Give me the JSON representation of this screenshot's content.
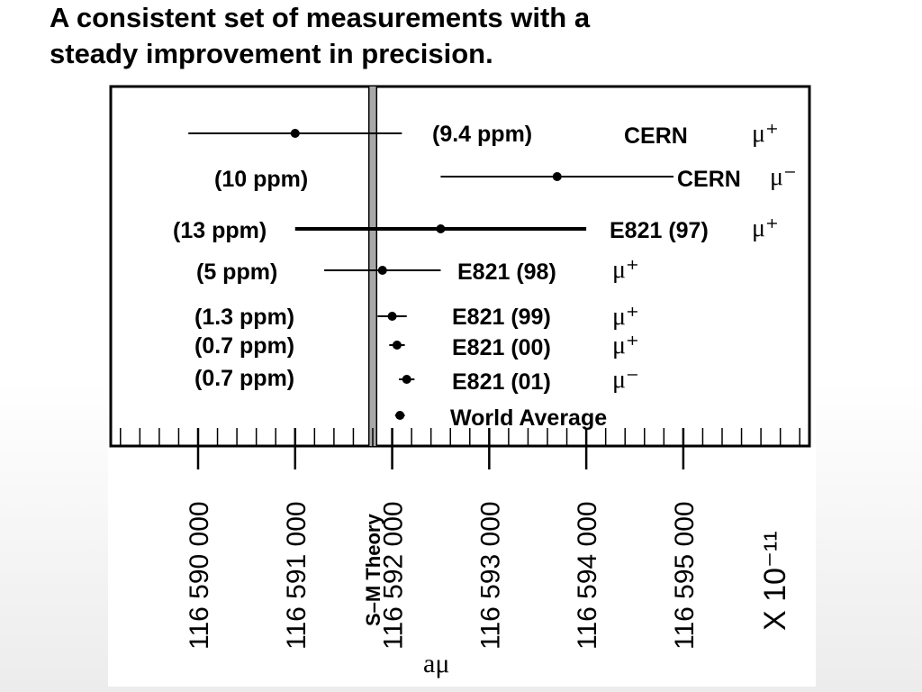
{
  "slide": {
    "title_line1": "A consistent set of measurements with a",
    "title_line2": "steady improvement in precision."
  },
  "chart_data": {
    "type": "scatter",
    "orientation": "horizontal",
    "xlabel": "aμ",
    "x_multiplier": "X 10⁻¹¹",
    "xlim": [
      116589100,
      116596300
    ],
    "x_ticks": [
      116590000,
      116591000,
      116592000,
      116593000,
      116594000,
      116595000
    ],
    "x_tick_labels": [
      "116 590 000",
      "116 591 000",
      "116 592 000",
      "116 593 000",
      "116 594 000",
      "116 595 000"
    ],
    "minor_tick_step": 200,
    "theory": {
      "label": "S–M Theory",
      "value": 116591800,
      "band": [
        116591760,
        116591840
      ]
    },
    "measurements": [
      {
        "experiment": "CERN",
        "charge": "μ⁺",
        "precision": "(9.4 ppm)",
        "value": 116591000,
        "err_lo": 116589900,
        "err_hi": 116592100
      },
      {
        "experiment": "CERN",
        "charge": "μ⁻",
        "precision": "(10 ppm)",
        "value": 116593700,
        "err_lo": 116592500,
        "err_hi": 116594900
      },
      {
        "experiment": "E821 (97)",
        "charge": "μ⁺",
        "precision": "(13 ppm)",
        "value": 116592500,
        "err_lo": 116591000,
        "err_hi": 116594000
      },
      {
        "experiment": "E821 (98)",
        "charge": "μ⁺",
        "precision": "(5 ppm)",
        "value": 116591900,
        "err_lo": 116591300,
        "err_hi": 116592500
      },
      {
        "experiment": "E821 (99)",
        "charge": "μ⁺",
        "precision": "(1.3 ppm)",
        "value": 116592000,
        "err_lo": 116591850,
        "err_hi": 116592150
      },
      {
        "experiment": "E821 (00)",
        "charge": "μ⁺",
        "precision": "(0.7 ppm)",
        "value": 116592050,
        "err_lo": 116591970,
        "err_hi": 116592130
      },
      {
        "experiment": "E821 (01)",
        "charge": "μ⁻",
        "precision": "(0.7 ppm)",
        "value": 116592150,
        "err_lo": 116592070,
        "err_hi": 116592230
      },
      {
        "experiment": "World Average",
        "charge": "",
        "precision": "",
        "value": 116592080,
        "err_lo": 116592030,
        "err_hi": 116592130
      }
    ]
  }
}
